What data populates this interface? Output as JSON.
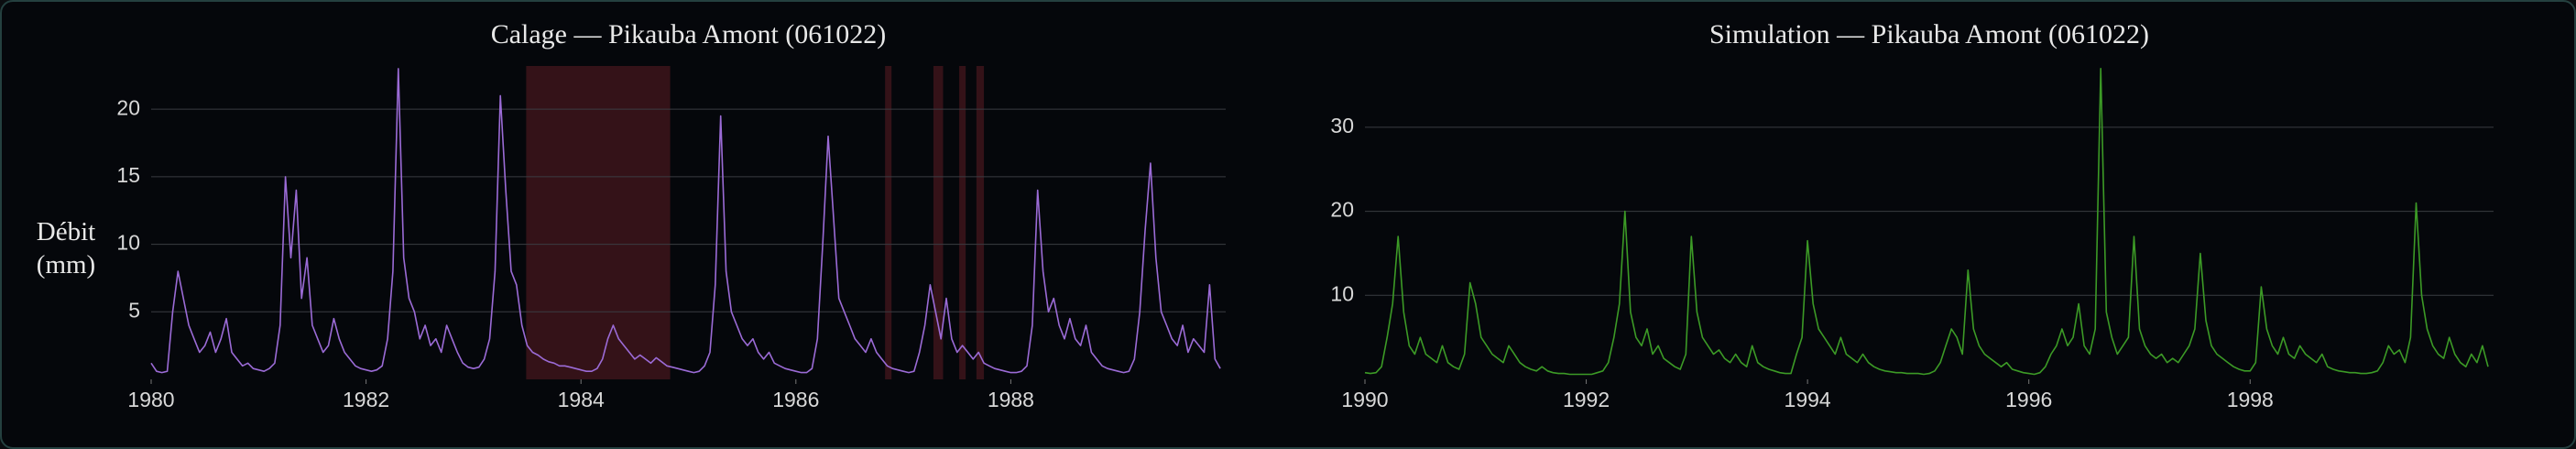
{
  "chart_data": [
    {
      "type": "line",
      "title": "Calage — Pikauba Amont (061022)",
      "y_label": "Débit (mm)",
      "color": "#9b6bd6",
      "x": [
        1980,
        1980.05,
        1980.1,
        1980.15,
        1980.2,
        1980.25,
        1980.3,
        1980.35,
        1980.4,
        1980.45,
        1980.5,
        1980.55,
        1980.6,
        1980.65,
        1980.7,
        1980.75,
        1980.8,
        1980.85,
        1980.9,
        1980.95,
        1981,
        1981.05,
        1981.1,
        1981.15,
        1981.2,
        1981.25,
        1981.3,
        1981.35,
        1981.4,
        1981.45,
        1981.5,
        1981.55,
        1981.6,
        1981.65,
        1981.7,
        1981.75,
        1981.8,
        1981.85,
        1981.9,
        1981.95,
        1982,
        1982.05,
        1982.1,
        1982.15,
        1982.2,
        1982.25,
        1982.3,
        1982.35,
        1982.4,
        1982.45,
        1982.5,
        1982.55,
        1982.6,
        1982.65,
        1982.7,
        1982.75,
        1982.8,
        1982.85,
        1982.9,
        1982.95,
        1983,
        1983.05,
        1983.1,
        1983.15,
        1983.2,
        1983.25,
        1983.3,
        1983.35,
        1983.4,
        1983.45,
        1983.5,
        1983.55,
        1983.6,
        1983.65,
        1983.7,
        1983.75,
        1983.8,
        1983.85,
        1983.9,
        1983.95,
        1984,
        1984.05,
        1984.1,
        1984.15,
        1984.2,
        1984.25,
        1984.3,
        1984.35,
        1984.4,
        1984.45,
        1984.5,
        1984.55,
        1984.6,
        1984.65,
        1984.7,
        1984.75,
        1984.8,
        1984.85,
        1984.9,
        1984.95,
        1985,
        1985.05,
        1985.1,
        1985.15,
        1985.2,
        1985.25,
        1985.3,
        1985.35,
        1985.4,
        1985.45,
        1985.5,
        1985.55,
        1985.6,
        1985.65,
        1985.7,
        1985.75,
        1985.8,
        1985.85,
        1985.9,
        1985.95,
        1986,
        1986.05,
        1986.1,
        1986.15,
        1986.2,
        1986.25,
        1986.3,
        1986.35,
        1986.4,
        1986.45,
        1986.5,
        1986.55,
        1986.6,
        1986.65,
        1986.7,
        1986.75,
        1986.8,
        1986.85,
        1986.9,
        1986.95,
        1987,
        1987.05,
        1987.1,
        1987.15,
        1987.2,
        1987.25,
        1987.3,
        1987.35,
        1987.4,
        1987.45,
        1987.5,
        1987.55,
        1987.6,
        1987.65,
        1987.7,
        1987.75,
        1987.8,
        1987.85,
        1987.9,
        1987.95,
        1988,
        1988.05,
        1988.1,
        1988.15,
        1988.2,
        1988.25,
        1988.3,
        1988.35,
        1988.4,
        1988.45,
        1988.5,
        1988.55,
        1988.6,
        1988.65,
        1988.7,
        1988.75,
        1988.8,
        1988.85,
        1988.9,
        1988.95,
        1989,
        1989.05,
        1989.1,
        1989.15,
        1989.2,
        1989.25,
        1989.3,
        1989.35,
        1989.4,
        1989.45,
        1989.5,
        1989.55,
        1989.6,
        1989.65,
        1989.7,
        1989.75,
        1989.8,
        1989.85,
        1989.9,
        1989.95
      ],
      "values": [
        1.2,
        0.6,
        0.5,
        0.6,
        5,
        8,
        6,
        4,
        3,
        2,
        2.5,
        3.5,
        2,
        3,
        4.5,
        2,
        1.5,
        1,
        1.2,
        0.8,
        0.7,
        0.6,
        0.8,
        1.2,
        4,
        15,
        9,
        14,
        6,
        9,
        4,
        3,
        2,
        2.5,
        4.5,
        3,
        2,
        1.5,
        1,
        0.8,
        0.7,
        0.6,
        0.7,
        1,
        3,
        8,
        23,
        9,
        6,
        5,
        3,
        4,
        2.5,
        3,
        2,
        4,
        3,
        2,
        1.2,
        0.9,
        0.8,
        0.9,
        1.5,
        3,
        8,
        21,
        14,
        8,
        7,
        4,
        2.5,
        2,
        1.8,
        1.5,
        1.3,
        1.2,
        1,
        1,
        0.9,
        0.8,
        0.7,
        0.6,
        0.6,
        0.8,
        1.5,
        3,
        4,
        3,
        2.5,
        2,
        1.5,
        1.8,
        1.5,
        1.2,
        1.6,
        1.3,
        1,
        0.9,
        0.8,
        0.7,
        0.6,
        0.5,
        0.6,
        1,
        2,
        7,
        19.5,
        8,
        5,
        4,
        3,
        2.5,
        3,
        2,
        1.5,
        2,
        1.2,
        1,
        0.8,
        0.7,
        0.6,
        0.5,
        0.5,
        0.8,
        3,
        10,
        18,
        12,
        6,
        5,
        4,
        3,
        2.5,
        2,
        3,
        2,
        1.5,
        1,
        0.8,
        0.7,
        0.6,
        0.5,
        0.6,
        2,
        4,
        7,
        5,
        3,
        6,
        3,
        2,
        2.5,
        2,
        1.5,
        2,
        1.2,
        1,
        0.8,
        0.7,
        0.6,
        0.5,
        0.5,
        0.6,
        1,
        4,
        14,
        8,
        5,
        6,
        4,
        3,
        4.5,
        3,
        2.5,
        4,
        2,
        1.5,
        1,
        0.8,
        0.7,
        0.6,
        0.5,
        0.6,
        1.5,
        5,
        11,
        16,
        9,
        5,
        4,
        3,
        2.5,
        4,
        2,
        3,
        2.5,
        2,
        7,
        1.5,
        0.8
      ],
      "shaded_periods": [
        [
          1983.49,
          1984.83
        ],
        [
          1986.83,
          1986.89
        ],
        [
          1987.28,
          1987.37
        ],
        [
          1987.52,
          1987.58
        ],
        [
          1987.68,
          1987.75
        ]
      ],
      "shade_color": "#3a1419",
      "xlim": [
        1980,
        1990
      ],
      "xticks": [
        1980,
        1982,
        1984,
        1986,
        1988
      ],
      "ylim": [
        0,
        23.2
      ],
      "yticks": [
        5,
        10,
        15,
        20
      ],
      "grid": true
    },
    {
      "type": "line",
      "title": "Simulation — Pikauba Amont (061022)",
      "color": "#3c9a26",
      "x": [
        1990,
        1990.05,
        1990.1,
        1990.15,
        1990.2,
        1990.25,
        1990.3,
        1990.35,
        1990.4,
        1990.45,
        1990.5,
        1990.55,
        1990.6,
        1990.65,
        1990.7,
        1990.75,
        1990.8,
        1990.85,
        1990.9,
        1990.95,
        1991,
        1991.05,
        1991.1,
        1991.15,
        1991.2,
        1991.25,
        1991.3,
        1991.35,
        1991.4,
        1991.45,
        1991.5,
        1991.55,
        1991.6,
        1991.65,
        1991.7,
        1991.75,
        1991.8,
        1991.85,
        1991.9,
        1991.95,
        1992,
        1992.05,
        1992.1,
        1992.15,
        1992.2,
        1992.25,
        1992.3,
        1992.35,
        1992.4,
        1992.45,
        1992.5,
        1992.55,
        1992.6,
        1992.65,
        1992.7,
        1992.75,
        1992.8,
        1992.85,
        1992.9,
        1992.95,
        1993,
        1993.05,
        1993.1,
        1993.15,
        1993.2,
        1993.25,
        1993.3,
        1993.35,
        1993.4,
        1993.45,
        1993.5,
        1993.55,
        1993.6,
        1993.65,
        1993.7,
        1993.75,
        1993.8,
        1993.85,
        1993.9,
        1993.95,
        1994,
        1994.05,
        1994.1,
        1994.15,
        1994.2,
        1994.25,
        1994.3,
        1994.35,
        1994.4,
        1994.45,
        1994.5,
        1994.55,
        1994.6,
        1994.65,
        1994.7,
        1994.75,
        1994.8,
        1994.85,
        1994.9,
        1994.95,
        1995,
        1995.05,
        1995.1,
        1995.15,
        1995.2,
        1995.25,
        1995.3,
        1995.35,
        1995.4,
        1995.45,
        1995.5,
        1995.55,
        1995.6,
        1995.65,
        1995.7,
        1995.75,
        1995.8,
        1995.85,
        1995.9,
        1995.95,
        1996,
        1996.05,
        1996.1,
        1996.15,
        1996.2,
        1996.25,
        1996.3,
        1996.35,
        1996.4,
        1996.45,
        1996.5,
        1996.55,
        1996.6,
        1996.65,
        1996.7,
        1996.75,
        1996.8,
        1996.85,
        1996.9,
        1996.95,
        1997,
        1997.05,
        1997.1,
        1997.15,
        1997.2,
        1997.25,
        1997.3,
        1997.35,
        1997.4,
        1997.45,
        1997.5,
        1997.55,
        1997.6,
        1997.65,
        1997.7,
        1997.75,
        1997.8,
        1997.85,
        1997.9,
        1997.95,
        1998,
        1998.05,
        1998.1,
        1998.15,
        1998.2,
        1998.25,
        1998.3,
        1998.35,
        1998.4,
        1998.45,
        1998.5,
        1998.55,
        1998.6,
        1998.65,
        1998.7,
        1998.75,
        1998.8,
        1998.85,
        1998.9,
        1998.95,
        1999,
        1999.05,
        1999.1,
        1999.15,
        1999.2,
        1999.25,
        1999.3,
        1999.35,
        1999.4,
        1999.45,
        1999.5,
        1999.55,
        1999.6,
        1999.65,
        1999.7,
        1999.75,
        1999.8,
        1999.85,
        1999.9,
        1999.95,
        2000,
        2000.05,
        2000.1,
        2000.15
      ],
      "values": [
        0.8,
        0.7,
        0.8,
        1.5,
        5,
        9,
        17,
        8,
        4,
        3,
        5,
        3,
        2.5,
        2,
        4,
        2,
        1.5,
        1.2,
        3,
        11.5,
        9,
        5,
        4,
        3,
        2.5,
        2,
        4,
        3,
        2,
        1.5,
        1.2,
        1,
        1.5,
        1,
        0.8,
        0.7,
        0.7,
        0.6,
        0.6,
        0.6,
        0.6,
        0.6,
        0.8,
        1,
        2,
        5,
        9,
        20,
        8,
        5,
        4,
        6,
        3,
        4,
        2.5,
        2,
        1.5,
        1.2,
        3,
        17,
        8,
        5,
        4,
        3,
        3.5,
        2.5,
        2,
        3,
        2,
        1.5,
        4,
        2,
        1.5,
        1.2,
        1,
        0.8,
        0.7,
        0.7,
        3,
        5,
        16.5,
        9,
        6,
        5,
        4,
        3,
        5,
        3,
        2.5,
        2,
        3,
        2,
        1.5,
        1.2,
        1,
        0.9,
        0.8,
        0.8,
        0.7,
        0.7,
        0.7,
        0.6,
        0.7,
        1,
        2,
        4,
        6,
        5,
        3,
        13,
        6,
        4,
        3,
        2.5,
        2,
        1.5,
        2,
        1.2,
        1,
        0.8,
        0.7,
        0.6,
        0.8,
        1.5,
        3,
        4,
        6,
        4,
        5,
        9,
        4,
        3,
        6,
        37,
        8,
        5,
        3,
        4,
        5,
        17,
        6,
        4,
        3,
        2.5,
        3,
        2,
        2.5,
        2,
        3,
        4,
        6,
        15,
        7,
        4,
        3,
        2.5,
        2,
        1.5,
        1.2,
        1,
        1,
        2,
        11,
        6,
        4,
        3,
        5,
        3,
        2.5,
        4,
        3,
        2.5,
        2,
        3,
        1.5,
        1.2,
        1,
        0.9,
        0.8,
        0.8,
        0.7,
        0.7,
        0.8,
        1,
        2,
        4,
        3,
        3.5,
        2,
        5,
        21,
        10,
        6,
        4,
        3,
        2.5,
        5,
        3,
        2,
        1.5,
        3,
        2,
        4,
        1.5
      ],
      "xlim": [
        1990,
        2000.2
      ],
      "xticks": [
        1990,
        1992,
        1994,
        1996,
        1998
      ],
      "ylim": [
        0,
        37.3
      ],
      "yticks": [
        10,
        20,
        30
      ],
      "grid": true
    }
  ]
}
